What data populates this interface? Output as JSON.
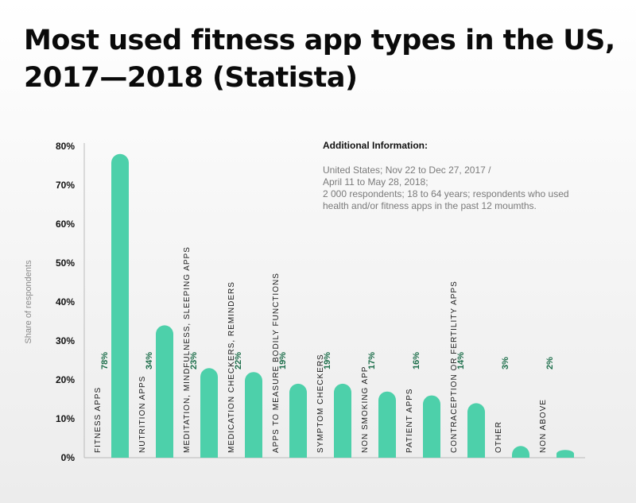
{
  "title_lines": [
    "Most used fitness app types in the US,",
    "2017—2018 (Statista)"
  ],
  "info": {
    "heading": "Additional Information:",
    "lines": [
      "United States; Nov 22 to Dec 27, 2017 /",
      "April 11 to May 28, 2018;",
      "2 000 respondents; 18 to 64 years; respondents who used",
      "health and/or fitness apps in the past 12 moumths."
    ]
  },
  "colors": {
    "bar": "#4dd0aa",
    "value_label": "#1c6e4a",
    "axis_text": "#111111",
    "axis_line": "#bbbbbb"
  },
  "chart_data": {
    "type": "bar",
    "title": "Most used fitness app types in the US, 2017—2018 (Statista)",
    "ylabel": "Share of respondents",
    "xlabel": "",
    "ylim": [
      0,
      80
    ],
    "yticks": [
      "0%",
      "10%",
      "20%",
      "30%",
      "40%",
      "50%",
      "60%",
      "70%",
      "80%"
    ],
    "categories": [
      "FITNESS APPS",
      "NUTRITION APPS",
      "MEDITATION, MINDFULNESS, SLEEPING APPS",
      "MEDICATION CHECKERS, REMINDERS",
      "APPS TO MEASURE BODILY FUNCTIONS",
      "SYMPTOM CHECKERS",
      "NON SMOKING APP",
      "PATIENT APPS",
      "CONTRACEPTION OR FERTILITY APPS",
      "OTHER",
      "NON ABOVE"
    ],
    "values": [
      78,
      34,
      23,
      22,
      19,
      19,
      17,
      16,
      14,
      3,
      2
    ],
    "value_labels": [
      "78%",
      "34%",
      "23%",
      "22%",
      "19%",
      "19%",
      "17%",
      "16%",
      "14%",
      "3%",
      "2%"
    ]
  }
}
